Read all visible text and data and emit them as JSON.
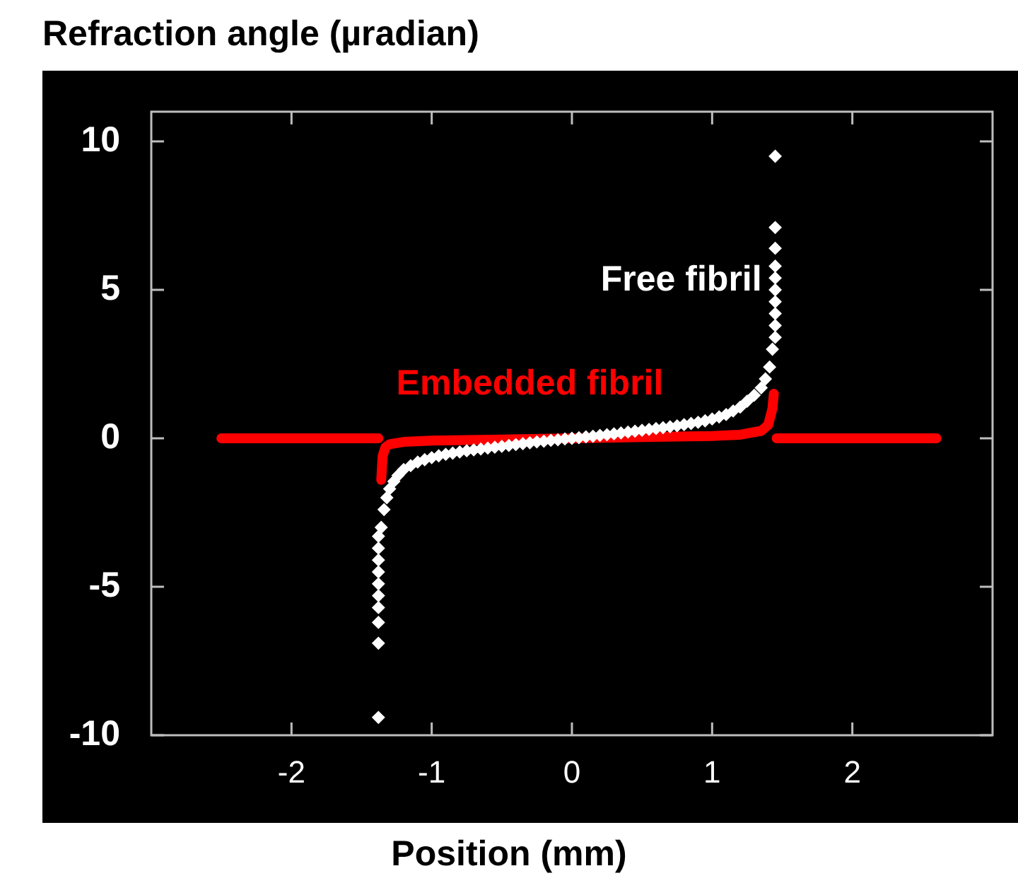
{
  "chart_data": {
    "type": "scatter",
    "ylabel": "Refraction angle (µradian)",
    "xlabel": "Position (mm)",
    "xlim": [
      -3,
      3
    ],
    "xticks": [
      -2,
      -1,
      0,
      1,
      2
    ],
    "ylim": [
      -10,
      11
    ],
    "yticks": [
      -10,
      -5,
      0,
      5,
      10
    ],
    "grid": false,
    "legend": false,
    "series": [
      {
        "name": "Free fibril",
        "marker": "diamond",
        "color": "#ffffff",
        "x": [
          -1.38,
          -1.38,
          -1.38,
          -1.38,
          -1.38,
          -1.38,
          -1.38,
          -1.38,
          -1.38,
          -1.38,
          -1.36,
          -1.34,
          -1.32,
          -1.3,
          -1.27,
          -1.24,
          -1.2,
          -1.15,
          -1.1,
          -1.05,
          -1.0,
          -0.95,
          -0.9,
          -0.85,
          -0.8,
          -0.75,
          -0.7,
          -0.65,
          -0.6,
          -0.55,
          -0.5,
          -0.45,
          -0.4,
          -0.35,
          -0.3,
          -0.25,
          -0.2,
          -0.15,
          -0.1,
          -0.05,
          0,
          0.05,
          0.1,
          0.15,
          0.2,
          0.25,
          0.3,
          0.35,
          0.4,
          0.45,
          0.5,
          0.55,
          0.6,
          0.65,
          0.7,
          0.75,
          0.8,
          0.85,
          0.9,
          0.95,
          1.0,
          1.05,
          1.1,
          1.15,
          1.2,
          1.25,
          1.3,
          1.35,
          1.38,
          1.41,
          1.43,
          1.45,
          1.45,
          1.45,
          1.45,
          1.45,
          1.45,
          1.45,
          1.45,
          1.45,
          1.45
        ],
        "values": [
          -9.4,
          -6.9,
          -6.2,
          -5.7,
          -5.3,
          -4.9,
          -4.5,
          -4.1,
          -3.7,
          -3.3,
          -3.0,
          -2.4,
          -2.0,
          -1.7,
          -1.45,
          -1.25,
          -1.05,
          -0.92,
          -0.8,
          -0.72,
          -0.65,
          -0.59,
          -0.54,
          -0.5,
          -0.46,
          -0.42,
          -0.39,
          -0.36,
          -0.33,
          -0.3,
          -0.27,
          -0.24,
          -0.21,
          -0.18,
          -0.15,
          -0.12,
          -0.1,
          -0.07,
          -0.05,
          -0.02,
          0,
          0.02,
          0.05,
          0.07,
          0.1,
          0.12,
          0.15,
          0.18,
          0.21,
          0.24,
          0.27,
          0.3,
          0.33,
          0.36,
          0.39,
          0.42,
          0.46,
          0.5,
          0.54,
          0.59,
          0.65,
          0.72,
          0.8,
          0.92,
          1.05,
          1.25,
          1.45,
          1.7,
          2.0,
          2.4,
          3.0,
          3.4,
          3.8,
          4.2,
          4.6,
          5.0,
          5.4,
          5.8,
          6.4,
          7.1,
          9.5
        ]
      },
      {
        "name": "Embedded fibril",
        "type": "line",
        "marker": "none",
        "color": "#ff0000",
        "x": [
          -2.5,
          -1.38,
          -1.375,
          -1.36,
          -1.35,
          -1.33,
          -1.3,
          -1.2,
          -1.0,
          -0.5,
          0,
          0.5,
          1.0,
          1.2,
          1.35,
          1.4,
          1.43,
          1.44,
          1.45,
          1.46,
          2.6
        ],
        "values": [
          0,
          0,
          null,
          -1.4,
          -0.6,
          -0.3,
          -0.2,
          -0.12,
          -0.08,
          -0.04,
          0,
          0.04,
          0.08,
          0.12,
          0.25,
          0.45,
          1.0,
          1.5,
          null,
          0,
          0
        ]
      }
    ]
  }
}
